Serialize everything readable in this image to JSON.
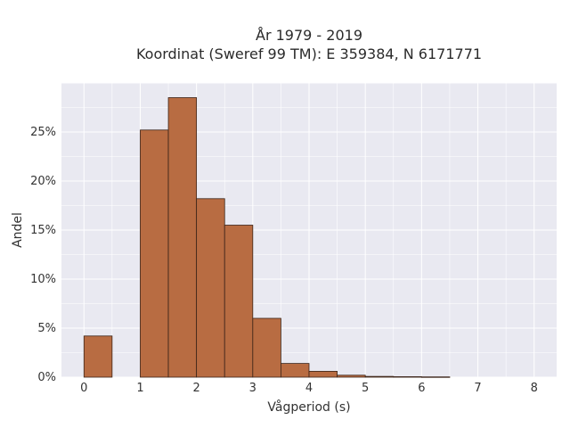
{
  "chart_data": {
    "type": "bar",
    "title_line1": "År 1979 - 2019",
    "title_line2": "Koordinat (Sweref 99 TM): E 359384, N 6171771",
    "xlabel": "Vågperiod (s)",
    "ylabel": "Andel",
    "xlim": [
      -0.4,
      8.4
    ],
    "ylim": [
      0,
      0.3
    ],
    "bin_width": 0.5,
    "bins": [
      {
        "start": 0.0,
        "value": 0.042
      },
      {
        "start": 0.5,
        "value": 0.0
      },
      {
        "start": 1.0,
        "value": 0.252
      },
      {
        "start": 1.5,
        "value": 0.285
      },
      {
        "start": 2.0,
        "value": 0.182
      },
      {
        "start": 2.5,
        "value": 0.155
      },
      {
        "start": 3.0,
        "value": 0.06
      },
      {
        "start": 3.5,
        "value": 0.014
      },
      {
        "start": 4.0,
        "value": 0.006
      },
      {
        "start": 4.5,
        "value": 0.002
      },
      {
        "start": 5.0,
        "value": 0.0008
      },
      {
        "start": 5.5,
        "value": 0.0005
      },
      {
        "start": 6.0,
        "value": 0.0003
      }
    ],
    "x_ticks": [
      0,
      1,
      2,
      3,
      4,
      5,
      6,
      7,
      8
    ],
    "x_tick_labels": [
      "0",
      "1",
      "2",
      "3",
      "4",
      "5",
      "6",
      "7",
      "8"
    ],
    "y_ticks": [
      0,
      0.05,
      0.1,
      0.15,
      0.2,
      0.25
    ],
    "y_tick_labels": [
      "0%",
      "5%",
      "10%",
      "15%",
      "20%",
      "25%"
    ],
    "grid": true,
    "legend": "none",
    "colors": {
      "bar": "#b86c42",
      "bar_edge": "#3b2418",
      "plot_bg": "#e9e9f1",
      "grid": "#ffffff"
    }
  }
}
